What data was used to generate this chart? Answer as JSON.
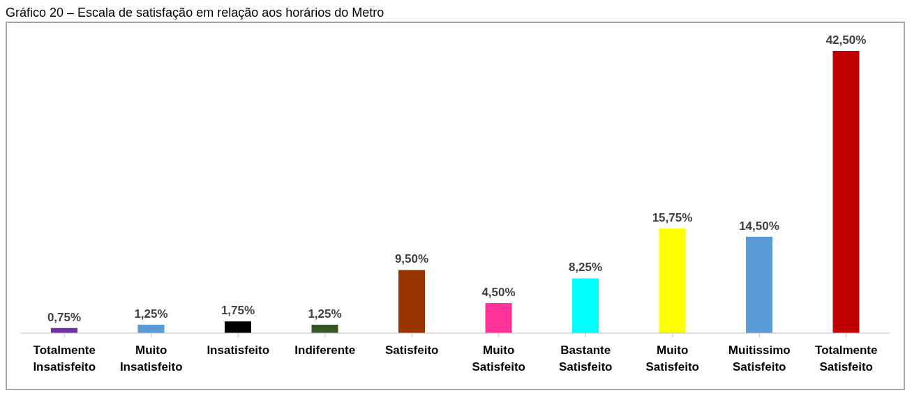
{
  "chart_data": {
    "type": "bar",
    "title": "Gráfico 20 – Escala de satisfação em relação aos horários do Metro",
    "categories": [
      "Totalmente Insatisfeito",
      "Muito Insatisfeito",
      "Insatisfeito",
      "Indiferente",
      "Satisfeito",
      "Muito Satisfeito",
      "Bastante Satisfeito",
      "Muito Satisfeito",
      "Muitissimo Satisfeito",
      "Totalmente Satisfeito"
    ],
    "values": [
      0.75,
      1.25,
      1.75,
      1.25,
      9.5,
      4.5,
      8.25,
      15.75,
      14.5,
      42.5
    ],
    "value_labels": [
      "0,75%",
      "1,25%",
      "1,75%",
      "1,25%",
      "9,50%",
      "4,50%",
      "8,25%",
      "15,75%",
      "14,50%",
      "42,50%"
    ],
    "colors": [
      "#7030a0",
      "#5b9bd5",
      "#000000",
      "#375623",
      "#993300",
      "#ff3399",
      "#00ffff",
      "#ffff00",
      "#5b9bd5",
      "#c00000"
    ],
    "grid": false,
    "legend": false
  }
}
